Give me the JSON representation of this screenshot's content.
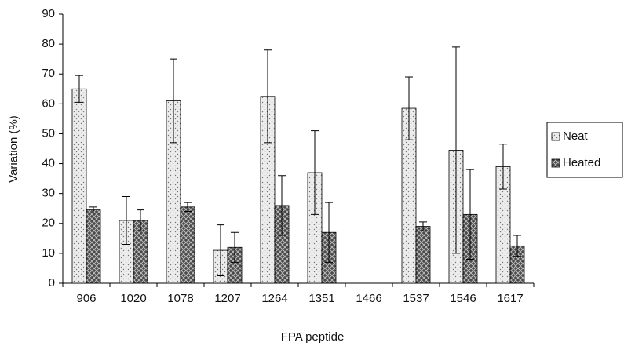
{
  "chart_data": {
    "type": "bar",
    "x_label": "FPA peptide",
    "y_label": "Variation (%)",
    "categories": [
      "906",
      "1020",
      "1078",
      "1207",
      "1264",
      "1351",
      "1466",
      "1537",
      "1546",
      "1617"
    ],
    "series": [
      {
        "name": "Neat",
        "color": "#ececec",
        "pattern": "dots",
        "values": [
          65,
          21,
          61,
          11,
          62.5,
          37,
          null,
          58.5,
          44.5,
          39
        ],
        "errors": [
          4.5,
          8,
          14,
          8.5,
          15.5,
          14,
          null,
          10.5,
          34.5,
          7.5
        ]
      },
      {
        "name": "Heated",
        "color": "#4a4a4a",
        "pattern": "cross",
        "values": [
          24.5,
          21,
          25.5,
          12,
          26,
          17,
          null,
          19,
          23,
          12.5
        ],
        "errors": [
          1,
          3.5,
          1.5,
          5,
          10,
          10,
          null,
          1.5,
          15,
          3.5
        ]
      }
    ],
    "ylim": [
      0,
      90
    ],
    "yticks": [
      0,
      10,
      20,
      30,
      40,
      50,
      60,
      70,
      80,
      90
    ],
    "legend": "right"
  }
}
